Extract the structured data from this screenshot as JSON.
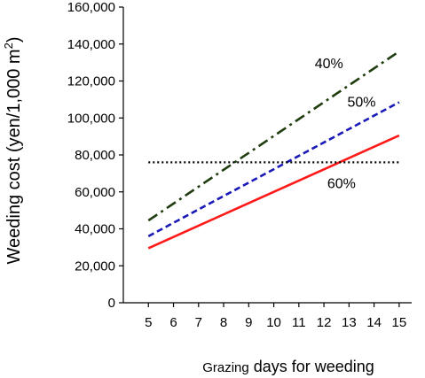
{
  "chart_data": {
    "type": "line",
    "xlabel_prefix": "Grazing",
    "xlabel_suffix": " days for weeding",
    "ylabel_main": "Weeding cost (yen/1,000 m",
    "ylabel_sup": "2",
    "ylabel_close": ")",
    "ylim": [
      0,
      160000
    ],
    "yticks": [
      "0",
      "20,000",
      "40,000",
      "60,000",
      "80,000",
      "100,000",
      "120,000",
      "140,000",
      "160,000"
    ],
    "ytick_values": [
      0,
      20000,
      40000,
      60000,
      80000,
      100000,
      120000,
      140000,
      160000
    ],
    "xlim": [
      4,
      15.5
    ],
    "xticks": [
      "5",
      "6",
      "7",
      "8",
      "9",
      "10",
      "11",
      "12",
      "13",
      "14",
      "15"
    ],
    "xtick_values": [
      5,
      6,
      7,
      8,
      9,
      10,
      11,
      12,
      13,
      14,
      15
    ],
    "grid": false,
    "series": [
      {
        "name": "40%",
        "x": [
          5,
          15
        ],
        "y": [
          44500,
          136000
        ],
        "color": "#1f3d0f",
        "style": "dash-dot"
      },
      {
        "name": "50%",
        "x": [
          5,
          15
        ],
        "y": [
          36000,
          108500
        ],
        "color": "#1a1ab8",
        "style": "dashed"
      },
      {
        "name": "60%",
        "x": [
          5,
          15
        ],
        "y": [
          29500,
          90500
        ],
        "color": "#ff1a1a",
        "style": "solid"
      },
      {
        "name": "",
        "x": [
          5,
          15
        ],
        "y": [
          76000,
          76000
        ],
        "color": "#000000",
        "style": "dotted"
      }
    ],
    "annotations": [
      {
        "text": "40%",
        "x": 12.2,
        "y": 127000
      },
      {
        "text": "50%",
        "x": 13.5,
        "y": 106000
      },
      {
        "text": "60%",
        "x": 12.7,
        "y": 62000
      }
    ]
  }
}
